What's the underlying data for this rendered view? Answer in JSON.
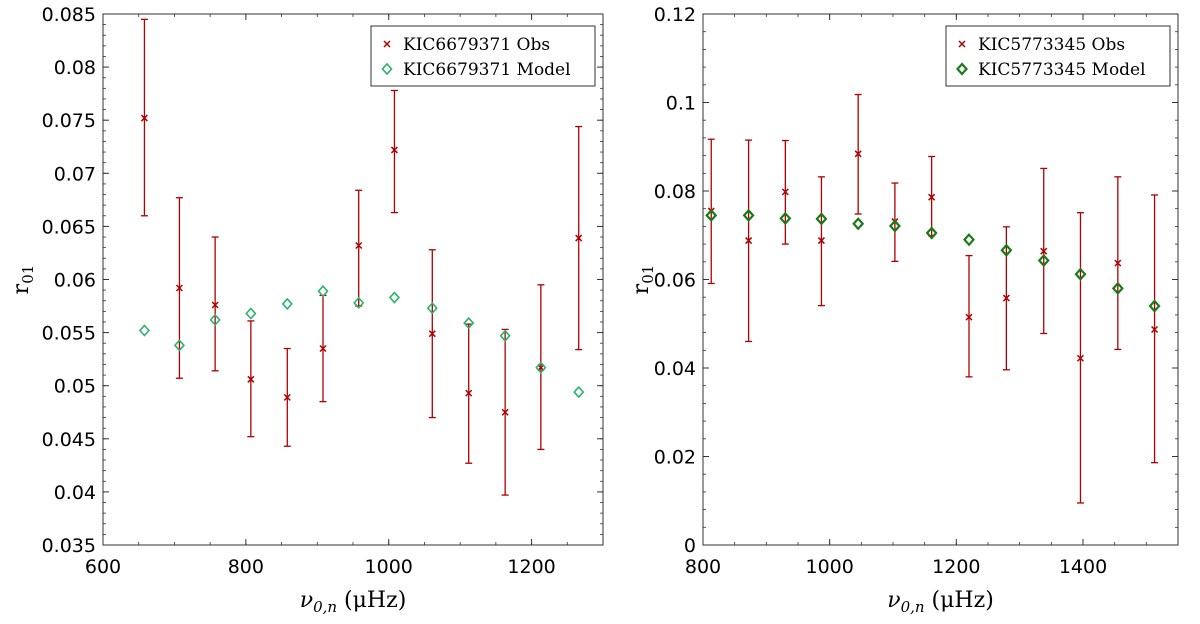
{
  "colors": {
    "obs": "#b00000",
    "model_left": "#2db36b",
    "model_right": "#1a7a1a",
    "axis": "#333333"
  },
  "chart_data": [
    {
      "type": "scatter",
      "title": "",
      "xlabel_main": "ν",
      "xlabel_sub": "0,n",
      "xlabel_unit": "(μHz)",
      "ylabel_main": "r",
      "ylabel_sub": "01",
      "xlim": [
        600,
        1300
      ],
      "ylim": [
        0.035,
        0.085
      ],
      "xticks": [
        600,
        800,
        1000,
        1200
      ],
      "xtick_labels": [
        "600",
        "800",
        "1000",
        "1200"
      ],
      "yticks": [
        0.035,
        0.04,
        0.045,
        0.05,
        0.055,
        0.06,
        0.065,
        0.07,
        0.075,
        0.08,
        0.085
      ],
      "ytick_labels": [
        "0.035",
        "0.04",
        "0.045",
        "0.05",
        "0.055",
        "0.06",
        "0.065",
        "0.07",
        "0.075",
        "0.08",
        "0.085"
      ],
      "legend": [
        "KIC6679371 Obs",
        "KIC6679371 Model"
      ],
      "legend_position": "top-right",
      "series": [
        {
          "name": "KIC6679371 Obs",
          "marker": "x",
          "x": [
            658,
            707,
            757,
            807,
            858,
            908,
            958,
            1008,
            1061,
            1112,
            1163,
            1213,
            1266
          ],
          "y": [
            0.0752,
            0.0592,
            0.0576,
            0.0506,
            0.0489,
            0.0535,
            0.0632,
            0.0722,
            0.0549,
            0.0493,
            0.0475,
            0.0517,
            0.0639
          ],
          "err_low": [
            0.066,
            0.0507,
            0.0514,
            0.0452,
            0.0443,
            0.0485,
            0.0575,
            0.0663,
            0.047,
            0.0427,
            0.0397,
            0.044,
            0.0534
          ],
          "err_high": [
            0.0845,
            0.0677,
            0.064,
            0.0561,
            0.0535,
            0.0585,
            0.0684,
            0.0778,
            0.0628,
            0.0558,
            0.0553,
            0.0595,
            0.0744
          ]
        },
        {
          "name": "KIC6679371 Model",
          "marker": "diamond",
          "x": [
            658,
            707,
            757,
            807,
            858,
            908,
            958,
            1008,
            1061,
            1112,
            1163,
            1213,
            1266
          ],
          "y": [
            0.0552,
            0.0538,
            0.0562,
            0.0568,
            0.0577,
            0.0589,
            0.0578,
            0.0583,
            0.0573,
            0.0559,
            0.0547,
            0.0517,
            0.0494
          ]
        }
      ]
    },
    {
      "type": "scatter",
      "title": "",
      "xlabel_main": "ν",
      "xlabel_sub": "0,n",
      "xlabel_unit": "(μHz)",
      "ylabel_main": "r",
      "ylabel_sub": "01",
      "xlim": [
        800,
        1550
      ],
      "ylim": [
        0,
        0.12
      ],
      "xticks": [
        800,
        1000,
        1200,
        1400
      ],
      "xtick_labels": [
        "800",
        "1000",
        "1200",
        "1400"
      ],
      "yticks": [
        0,
        0.02,
        0.04,
        0.06,
        0.08,
        0.1,
        0.12
      ],
      "ytick_labels": [
        "0",
        "0.02",
        "0.04",
        "0.06",
        "0.08",
        "0.1",
        "0.12"
      ],
      "legend": [
        "KIC5773345 Obs",
        "KIC5773345 Model"
      ],
      "legend_position": "top-right",
      "series": [
        {
          "name": "KIC5773345 Obs",
          "marker": "x",
          "x": [
            813,
            872,
            930,
            987,
            1045,
            1103,
            1161,
            1220,
            1279,
            1338,
            1396,
            1455,
            1513
          ],
          "y": [
            0.0755,
            0.0688,
            0.0798,
            0.0688,
            0.0884,
            0.0731,
            0.0786,
            0.0515,
            0.0558,
            0.0664,
            0.0422,
            0.0637,
            0.0487
          ],
          "err_low": [
            0.0591,
            0.046,
            0.068,
            0.0541,
            0.0748,
            0.0641,
            0.0699,
            0.038,
            0.0396,
            0.0478,
            0.0095,
            0.0442,
            0.0186
          ],
          "err_high": [
            0.0917,
            0.0915,
            0.0914,
            0.0832,
            0.1018,
            0.0818,
            0.0878,
            0.0654,
            0.0719,
            0.0851,
            0.0751,
            0.0832,
            0.0791
          ]
        },
        {
          "name": "KIC5773345 Model",
          "marker": "diamond",
          "x": [
            813,
            872,
            930,
            987,
            1045,
            1103,
            1161,
            1220,
            1279,
            1338,
            1396,
            1455,
            1513
          ],
          "y": [
            0.0745,
            0.0745,
            0.0738,
            0.0737,
            0.0726,
            0.0721,
            0.0705,
            0.069,
            0.0666,
            0.0643,
            0.0612,
            0.058,
            0.054
          ]
        }
      ]
    }
  ]
}
